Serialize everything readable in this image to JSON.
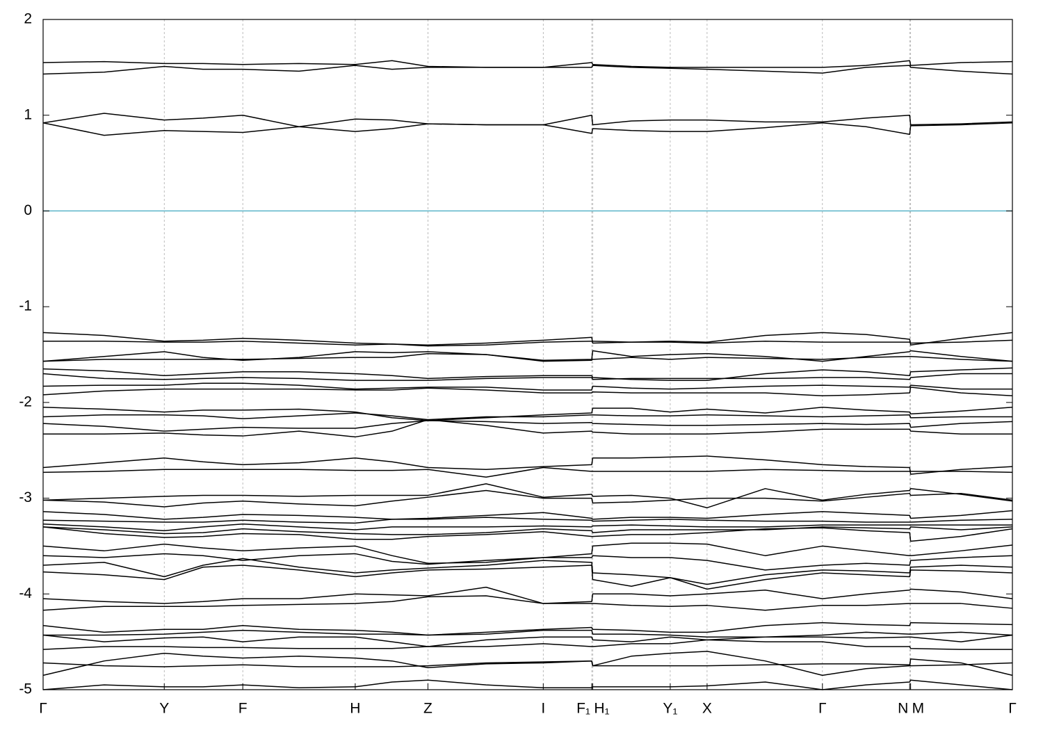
{
  "chart_data": {
    "type": "line",
    "x": [
      0,
      0.063,
      0.125,
      0.165,
      0.206,
      0.264,
      0.322,
      0.36,
      0.397,
      0.457,
      0.516,
      0.566,
      0.567,
      0.607,
      0.647,
      0.685,
      0.745,
      0.804,
      0.849,
      0.894,
      0.895,
      0.947,
      1
    ],
    "xlim": [
      0,
      1
    ],
    "xticks": [
      {
        "value": 0,
        "label": "Γ"
      },
      {
        "value": 0.125,
        "label": "Y"
      },
      {
        "value": 0.206,
        "label": "F"
      },
      {
        "value": 0.322,
        "label": "H"
      },
      {
        "value": 0.397,
        "label": "Z"
      },
      {
        "value": 0.516,
        "label": "I"
      },
      {
        "value": 0.566,
        "label": "F₁"
      },
      {
        "value": 0.567,
        "label": "H₁"
      },
      {
        "value": 0.647,
        "label": "Y₁"
      },
      {
        "value": 0.685,
        "label": "X"
      },
      {
        "value": 0.804,
        "label": "Γ"
      },
      {
        "value": 0.894,
        "label": "N"
      },
      {
        "value": 0.895,
        "label": "M"
      },
      {
        "value": 1,
        "label": "Γ"
      }
    ],
    "ylim": [
      -5,
      2
    ],
    "yticks": [
      2,
      1,
      0,
      -1,
      -2,
      -3,
      -4,
      -5
    ],
    "grid_x": true,
    "reference_line": {
      "value": 0,
      "color": "#5ab4c8"
    },
    "series": [
      {
        "color": "#000000",
        "values": [
          1.55,
          1.56,
          1.54,
          1.54,
          1.53,
          1.54,
          1.53,
          1.57,
          1.51,
          1.5,
          1.5,
          1.55,
          1.53,
          1.51,
          1.5,
          1.5,
          1.5,
          1.5,
          1.52,
          1.57,
          1.52,
          1.55,
          1.56
        ]
      },
      {
        "color": "#000000",
        "values": [
          1.43,
          1.45,
          1.51,
          1.48,
          1.48,
          1.46,
          1.52,
          1.48,
          1.5,
          1.5,
          1.5,
          1.5,
          1.52,
          1.5,
          1.49,
          1.48,
          1.46,
          1.44,
          1.5,
          1.52,
          1.5,
          1.46,
          1.43
        ]
      },
      {
        "color": "#000000",
        "values": [
          0.92,
          1.02,
          0.95,
          0.97,
          1.0,
          0.88,
          0.96,
          0.95,
          0.91,
          0.9,
          0.9,
          1.0,
          0.9,
          0.94,
          0.95,
          0.95,
          0.93,
          0.93,
          0.97,
          1.0,
          0.9,
          0.91,
          0.93
        ]
      },
      {
        "color": "#000000",
        "values": [
          0.92,
          0.79,
          0.84,
          0.83,
          0.82,
          0.88,
          0.83,
          0.86,
          0.91,
          0.9,
          0.9,
          0.81,
          0.86,
          0.84,
          0.83,
          0.83,
          0.87,
          0.92,
          0.88,
          0.8,
          0.89,
          0.9,
          0.92
        ]
      },
      {
        "color": "#000000",
        "values": [
          -1.27,
          -1.3,
          -1.36,
          -1.35,
          -1.33,
          -1.35,
          -1.38,
          -1.39,
          -1.4,
          -1.38,
          -1.35,
          -1.32,
          -1.38,
          -1.37,
          -1.36,
          -1.37,
          -1.3,
          -1.27,
          -1.29,
          -1.34,
          -1.4,
          -1.33,
          -1.27
        ]
      },
      {
        "color": "#000000",
        "values": [
          -1.36,
          -1.36,
          -1.37,
          -1.37,
          -1.36,
          -1.38,
          -1.4,
          -1.39,
          -1.41,
          -1.4,
          -1.37,
          -1.36,
          -1.36,
          -1.37,
          -1.37,
          -1.38,
          -1.36,
          -1.37,
          -1.37,
          -1.37,
          -1.38,
          -1.37,
          -1.35
        ]
      },
      {
        "color": "#000000",
        "values": [
          -1.57,
          -1.52,
          -1.47,
          -1.53,
          -1.56,
          -1.53,
          -1.47,
          -1.48,
          -1.47,
          -1.5,
          -1.56,
          -1.55,
          -1.46,
          -1.52,
          -1.5,
          -1.49,
          -1.52,
          -1.57,
          -1.52,
          -1.47,
          -1.46,
          -1.52,
          -1.57
        ]
      },
      {
        "color": "#000000",
        "values": [
          -1.57,
          -1.55,
          -1.55,
          -1.55,
          -1.55,
          -1.54,
          -1.53,
          -1.53,
          -1.49,
          -1.5,
          -1.57,
          -1.56,
          -1.55,
          -1.53,
          -1.55,
          -1.53,
          -1.54,
          -1.55,
          -1.53,
          -1.52,
          -1.52,
          -1.55,
          -1.57
        ]
      },
      {
        "color": "#000000",
        "values": [
          -1.65,
          -1.67,
          -1.72,
          -1.7,
          -1.68,
          -1.68,
          -1.7,
          -1.72,
          -1.75,
          -1.73,
          -1.72,
          -1.72,
          -1.74,
          -1.76,
          -1.77,
          -1.77,
          -1.7,
          -1.66,
          -1.68,
          -1.72,
          -1.68,
          -1.66,
          -1.64
        ]
      },
      {
        "color": "#000000",
        "values": [
          -1.7,
          -1.75,
          -1.76,
          -1.75,
          -1.74,
          -1.75,
          -1.77,
          -1.77,
          -1.77,
          -1.75,
          -1.74,
          -1.74,
          -1.76,
          -1.75,
          -1.75,
          -1.75,
          -1.75,
          -1.74,
          -1.74,
          -1.76,
          -1.74,
          -1.7,
          -1.7
        ]
      },
      {
        "color": "#000000",
        "values": [
          -1.83,
          -1.82,
          -1.82,
          -1.8,
          -1.8,
          -1.82,
          -1.86,
          -1.85,
          -1.84,
          -1.84,
          -1.87,
          -1.87,
          -1.83,
          -1.85,
          -1.86,
          -1.85,
          -1.83,
          -1.82,
          -1.83,
          -1.84,
          -1.82,
          -1.86,
          -1.86
        ]
      },
      {
        "color": "#000000",
        "values": [
          -1.92,
          -1.88,
          -1.86,
          -1.86,
          -1.86,
          -1.86,
          -1.87,
          -1.87,
          -1.85,
          -1.87,
          -1.9,
          -1.9,
          -1.89,
          -1.9,
          -1.9,
          -1.9,
          -1.9,
          -1.93,
          -1.92,
          -1.9,
          -1.84,
          -1.9,
          -1.93
        ]
      },
      {
        "color": "#000000",
        "values": [
          -2.05,
          -2.07,
          -2.1,
          -2.08,
          -2.08,
          -2.07,
          -2.1,
          -2.16,
          -2.19,
          -2.16,
          -2.13,
          -2.11,
          -2.06,
          -2.06,
          -2.1,
          -2.07,
          -2.11,
          -2.05,
          -2.08,
          -2.1,
          -2.12,
          -2.09,
          -2.05
        ]
      },
      {
        "color": "#000000",
        "values": [
          -2.15,
          -2.13,
          -2.13,
          -2.14,
          -2.17,
          -2.14,
          -2.11,
          -2.14,
          -2.18,
          -2.15,
          -2.15,
          -2.13,
          -2.13,
          -2.14,
          -2.14,
          -2.13,
          -2.14,
          -2.15,
          -2.14,
          -2.13,
          -2.16,
          -2.15,
          -2.15
        ]
      },
      {
        "color": "#000000",
        "values": [
          -2.22,
          -2.25,
          -2.3,
          -2.28,
          -2.26,
          -2.27,
          -2.27,
          -2.22,
          -2.19,
          -2.2,
          -2.22,
          -2.21,
          -2.22,
          -2.23,
          -2.24,
          -2.24,
          -2.23,
          -2.22,
          -2.23,
          -2.22,
          -2.26,
          -2.22,
          -2.2
        ]
      },
      {
        "color": "#000000",
        "values": [
          -2.33,
          -2.33,
          -2.32,
          -2.34,
          -2.35,
          -2.3,
          -2.36,
          -2.3,
          -2.18,
          -2.24,
          -2.32,
          -2.3,
          -2.31,
          -2.33,
          -2.33,
          -2.33,
          -2.31,
          -2.28,
          -2.28,
          -2.28,
          -2.3,
          -2.33,
          -2.33
        ]
      },
      {
        "color": "#000000",
        "values": [
          -2.68,
          -2.63,
          -2.58,
          -2.62,
          -2.65,
          -2.63,
          -2.58,
          -2.62,
          -2.68,
          -2.7,
          -2.67,
          -2.65,
          -2.58,
          -2.58,
          -2.57,
          -2.56,
          -2.6,
          -2.65,
          -2.67,
          -2.68,
          -2.75,
          -2.7,
          -2.67
        ]
      },
      {
        "color": "#000000",
        "values": [
          -2.73,
          -2.72,
          -2.7,
          -2.7,
          -2.7,
          -2.7,
          -2.71,
          -2.71,
          -2.7,
          -2.78,
          -2.68,
          -2.72,
          -2.72,
          -2.72,
          -2.72,
          -2.72,
          -2.7,
          -2.71,
          -2.72,
          -2.72,
          -2.72,
          -2.72,
          -2.73
        ]
      },
      {
        "color": "#000000",
        "values": [
          -3.02,
          -3.0,
          -2.98,
          -2.97,
          -2.97,
          -2.98,
          -2.97,
          -2.97,
          -2.97,
          -2.85,
          -2.99,
          -2.96,
          -2.98,
          -2.97,
          -3.0,
          -3.1,
          -2.9,
          -3.02,
          -2.96,
          -2.92,
          -2.9,
          -2.96,
          -3.03
        ]
      },
      {
        "color": "#000000",
        "values": [
          -3.02,
          -3.04,
          -3.09,
          -3.05,
          -3.03,
          -3.06,
          -3.08,
          -3.03,
          -2.99,
          -2.92,
          -3.0,
          -3.0,
          -3.05,
          -3.04,
          -3.02,
          -3.0,
          -3.0,
          -3.03,
          -2.99,
          -2.95,
          -2.97,
          -2.95,
          -3.02
        ]
      },
      {
        "color": "#000000",
        "values": [
          -3.14,
          -3.17,
          -3.22,
          -3.2,
          -3.17,
          -3.18,
          -3.2,
          -3.22,
          -3.21,
          -3.18,
          -3.15,
          -3.21,
          -3.22,
          -3.2,
          -3.2,
          -3.21,
          -3.17,
          -3.14,
          -3.16,
          -3.18,
          -3.21,
          -3.18,
          -3.13
        ]
      },
      {
        "color": "#000000",
        "values": [
          -3.23,
          -3.24,
          -3.25,
          -3.25,
          -3.23,
          -3.25,
          -3.26,
          -3.22,
          -3.22,
          -3.2,
          -3.22,
          -3.23,
          -3.24,
          -3.23,
          -3.22,
          -3.23,
          -3.24,
          -3.24,
          -3.25,
          -3.25,
          -3.25,
          -3.23,
          -3.22
        ]
      },
      {
        "color": "#000000",
        "values": [
          -3.27,
          -3.3,
          -3.34,
          -3.3,
          -3.27,
          -3.3,
          -3.33,
          -3.3,
          -3.3,
          -3.3,
          -3.29,
          -3.3,
          -3.29,
          -3.28,
          -3.29,
          -3.3,
          -3.3,
          -3.28,
          -3.28,
          -3.28,
          -3.28,
          -3.28,
          -3.28
        ]
      },
      {
        "color": "#000000",
        "values": [
          -3.3,
          -3.33,
          -3.37,
          -3.36,
          -3.32,
          -3.35,
          -3.37,
          -3.38,
          -3.38,
          -3.36,
          -3.32,
          -3.34,
          -3.36,
          -3.33,
          -3.33,
          -3.33,
          -3.33,
          -3.3,
          -3.31,
          -3.32,
          -3.3,
          -3.33,
          -3.3
        ]
      },
      {
        "color": "#000000",
        "values": [
          -3.3,
          -3.37,
          -3.41,
          -3.4,
          -3.37,
          -3.38,
          -3.43,
          -3.43,
          -3.4,
          -3.38,
          -3.35,
          -3.4,
          -3.4,
          -3.38,
          -3.38,
          -3.36,
          -3.32,
          -3.31,
          -3.34,
          -3.36,
          -3.45,
          -3.4,
          -3.32
        ]
      },
      {
        "color": "#000000",
        "values": [
          -3.5,
          -3.55,
          -3.48,
          -3.52,
          -3.55,
          -3.52,
          -3.5,
          -3.6,
          -3.68,
          -3.67,
          -3.62,
          -3.58,
          -3.5,
          -3.47,
          -3.47,
          -3.48,
          -3.6,
          -3.5,
          -3.55,
          -3.6,
          -3.6,
          -3.55,
          -3.49
        ]
      },
      {
        "color": "#000000",
        "values": [
          -3.6,
          -3.62,
          -3.58,
          -3.6,
          -3.65,
          -3.6,
          -3.58,
          -3.66,
          -3.69,
          -3.65,
          -3.62,
          -3.62,
          -3.6,
          -3.62,
          -3.62,
          -3.65,
          -3.75,
          -3.7,
          -3.68,
          -3.7,
          -3.65,
          -3.62,
          -3.6
        ]
      },
      {
        "color": "#000000",
        "values": [
          -3.7,
          -3.67,
          -3.82,
          -3.7,
          -3.63,
          -3.72,
          -3.78,
          -3.75,
          -3.73,
          -3.7,
          -3.65,
          -3.67,
          -3.78,
          -3.8,
          -3.83,
          -3.9,
          -3.8,
          -3.75,
          -3.76,
          -3.78,
          -3.72,
          -3.7,
          -3.72
        ]
      },
      {
        "color": "#000000",
        "values": [
          -3.77,
          -3.8,
          -3.85,
          -3.72,
          -3.7,
          -3.75,
          -3.82,
          -3.78,
          -3.75,
          -3.74,
          -3.72,
          -3.7,
          -3.85,
          -3.92,
          -3.83,
          -3.95,
          -3.85,
          -3.78,
          -3.8,
          -3.82,
          -3.75,
          -3.76,
          -3.78
        ]
      },
      {
        "color": "#000000",
        "values": [
          -4.05,
          -4.08,
          -4.1,
          -4.08,
          -4.05,
          -4.05,
          -4.0,
          -4.01,
          -4.02,
          -3.93,
          -4.1,
          -4.08,
          -4.0,
          -4.0,
          -4.02,
          -4.0,
          -3.96,
          -4.05,
          -4.0,
          -3.96,
          -3.95,
          -3.98,
          -4.05
        ]
      },
      {
        "color": "#000000",
        "values": [
          -4.17,
          -4.13,
          -4.13,
          -4.13,
          -4.12,
          -4.11,
          -4.1,
          -4.08,
          -4.03,
          -4.02,
          -4.1,
          -4.1,
          -4.1,
          -4.12,
          -4.13,
          -4.12,
          -4.17,
          -4.12,
          -4.12,
          -4.1,
          -4.1,
          -4.1,
          -4.15
        ]
      },
      {
        "color": "#000000",
        "values": [
          -4.33,
          -4.4,
          -4.37,
          -4.37,
          -4.33,
          -4.37,
          -4.38,
          -4.4,
          -4.43,
          -4.4,
          -4.37,
          -4.35,
          -4.37,
          -4.38,
          -4.4,
          -4.4,
          -4.33,
          -4.3,
          -4.32,
          -4.33,
          -4.3,
          -4.31,
          -4.32
        ]
      },
      {
        "color": "#000000",
        "values": [
          -4.43,
          -4.43,
          -4.42,
          -4.4,
          -4.38,
          -4.4,
          -4.42,
          -4.42,
          -4.43,
          -4.42,
          -4.38,
          -4.38,
          -4.42,
          -4.42,
          -4.43,
          -4.45,
          -4.45,
          -4.43,
          -4.4,
          -4.42,
          -4.42,
          -4.4,
          -4.43
        ]
      },
      {
        "color": "#000000",
        "values": [
          -4.43,
          -4.5,
          -4.46,
          -4.45,
          -4.5,
          -4.45,
          -4.45,
          -4.5,
          -4.55,
          -4.48,
          -4.45,
          -4.45,
          -4.48,
          -4.5,
          -4.45,
          -4.48,
          -4.45,
          -4.45,
          -4.46,
          -4.45,
          -4.45,
          -4.5,
          -4.43
        ]
      },
      {
        "color": "#000000",
        "values": [
          -4.58,
          -4.55,
          -4.55,
          -4.56,
          -4.56,
          -4.57,
          -4.57,
          -4.57,
          -4.55,
          -4.55,
          -4.52,
          -4.55,
          -4.55,
          -4.52,
          -4.52,
          -4.48,
          -4.5,
          -4.5,
          -4.55,
          -4.55,
          -4.57,
          -4.58,
          -4.58
        ]
      },
      {
        "color": "#000000",
        "values": [
          -4.85,
          -4.7,
          -4.62,
          -4.65,
          -4.67,
          -4.65,
          -4.67,
          -4.7,
          -4.77,
          -4.73,
          -4.72,
          -4.7,
          -4.75,
          -4.65,
          -4.62,
          -4.6,
          -4.7,
          -4.85,
          -4.78,
          -4.75,
          -4.68,
          -4.72,
          -4.85
        ]
      },
      {
        "color": "#000000",
        "values": [
          -4.72,
          -4.75,
          -4.76,
          -4.75,
          -4.74,
          -4.76,
          -4.76,
          -4.76,
          -4.75,
          -4.72,
          -4.71,
          -4.7,
          -4.75,
          -4.75,
          -4.75,
          -4.75,
          -4.74,
          -4.73,
          -4.73,
          -4.74,
          -4.75,
          -4.74,
          -4.72
        ]
      },
      {
        "color": "#000000",
        "values": [
          -5.0,
          -4.95,
          -4.97,
          -4.97,
          -4.95,
          -4.98,
          -4.97,
          -4.92,
          -4.9,
          -4.95,
          -4.98,
          -4.98,
          -4.97,
          -4.97,
          -4.97,
          -4.96,
          -4.92,
          -5.0,
          -4.95,
          -4.92,
          -4.9,
          -4.95,
          -5.0
        ]
      }
    ]
  }
}
